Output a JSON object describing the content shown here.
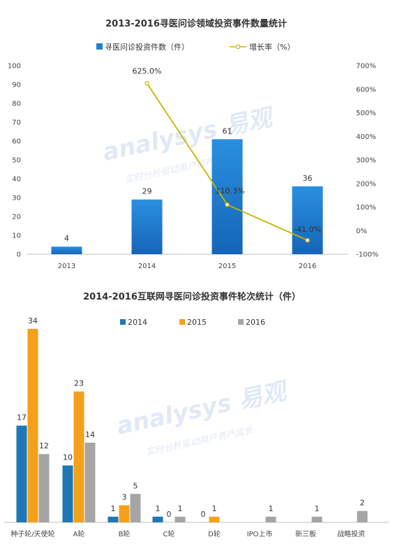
{
  "chart_data": [
    {
      "type": "bar",
      "title": "2013-2016寻医问诊领域投资事件数量统计",
      "categories": [
        "2013",
        "2014",
        "2015",
        "2016"
      ],
      "series": [
        {
          "name": "寻医问诊投资件数（件）",
          "type": "bar",
          "axis": "left",
          "values": [
            4,
            29,
            61,
            36
          ],
          "color": "#1f7fd0"
        },
        {
          "name": "增长率（%）",
          "type": "line",
          "axis": "right",
          "values": [
            null,
            625.0,
            110.3,
            -41.0
          ],
          "labels": [
            "",
            "625.0%",
            "110.3%",
            "-41.0%"
          ],
          "color": "#c8b400"
        }
      ],
      "y_left": {
        "ylim": [
          0,
          100
        ],
        "ticks": [
          "0",
          "10",
          "20",
          "30",
          "40",
          "50",
          "60",
          "70",
          "80",
          "90",
          "100"
        ]
      },
      "y_right": {
        "ylim": [
          -100,
          700
        ],
        "ticks": [
          "-100%",
          "0%",
          "100%",
          "200%",
          "300%",
          "400%",
          "500%",
          "600%",
          "700%"
        ]
      },
      "legend_position": "top-center",
      "grid": false
    },
    {
      "type": "bar",
      "title": "2014-2016互联网寻医问诊投资事件轮次统计（件）",
      "categories": [
        "种子轮/天使轮",
        "A轮",
        "B轮",
        "C轮",
        "D轮",
        "IPO上市",
        "新三板",
        "战略投资"
      ],
      "series": [
        {
          "name": "2014",
          "values": [
            17,
            10,
            1,
            1,
            0,
            null,
            null,
            null
          ],
          "color": "#1f77b4"
        },
        {
          "name": "2015",
          "values": [
            34,
            23,
            3,
            0,
            1,
            null,
            null,
            null
          ],
          "color": "#f5a01a"
        },
        {
          "name": "2016",
          "values": [
            12,
            14,
            5,
            1,
            null,
            1,
            1,
            2
          ],
          "color": "#a5a5a5"
        }
      ],
      "legend_position": "top-center",
      "grid": false
    }
  ],
  "watermark": {
    "brand": "analysys 易观",
    "slogan": "实时分析驱动用户资产成长"
  }
}
